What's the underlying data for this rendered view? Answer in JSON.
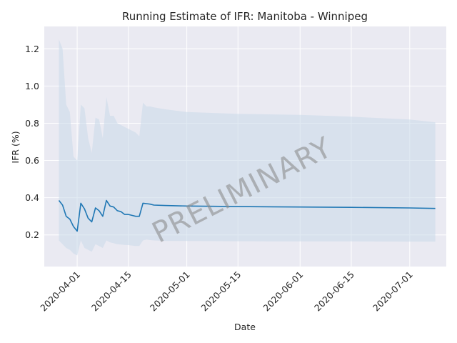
{
  "chart_data": {
    "type": "line",
    "title": "Running Estimate of IFR: Manitoba - Winnipeg",
    "xlabel": "Date",
    "ylabel": "IFR (%)",
    "watermark": "PRELIMINARY",
    "grid": true,
    "legend": "none",
    "xlim": [
      "2020-03-23",
      "2020-07-11"
    ],
    "ylim": [
      0.03,
      1.32
    ],
    "x_ticks": [
      "2020-04-01",
      "2020-04-15",
      "2020-05-01",
      "2020-05-15",
      "2020-06-01",
      "2020-06-15",
      "2020-07-01"
    ],
    "y_ticks": [
      "0.2",
      "0.4",
      "0.6",
      "0.8",
      "1.0",
      "1.2"
    ],
    "colors": {
      "line": "#1f77b4",
      "band": "#c9d9ea",
      "background": "#eaeaf2",
      "grid": "#ffffff"
    },
    "series": [
      {
        "x": [
          "2020-03-27",
          "2020-03-28",
          "2020-03-29",
          "2020-03-30",
          "2020-03-31",
          "2020-04-01",
          "2020-04-02",
          "2020-04-03",
          "2020-04-04",
          "2020-04-05",
          "2020-04-06",
          "2020-04-07",
          "2020-04-08",
          "2020-04-09",
          "2020-04-10",
          "2020-04-11",
          "2020-04-12",
          "2020-04-13",
          "2020-04-14",
          "2020-04-15",
          "2020-04-16",
          "2020-04-17",
          "2020-04-18",
          "2020-04-19",
          "2020-04-20",
          "2020-04-21",
          "2020-04-22",
          "2020-04-25",
          "2020-05-01",
          "2020-05-15",
          "2020-06-01",
          "2020-06-15",
          "2020-07-01",
          "2020-07-08"
        ],
        "values": [
          0.385,
          0.36,
          0.3,
          0.285,
          0.245,
          0.22,
          0.37,
          0.34,
          0.29,
          0.27,
          0.345,
          0.33,
          0.3,
          0.385,
          0.355,
          0.35,
          0.33,
          0.325,
          0.31,
          0.31,
          0.305,
          0.3,
          0.3,
          0.37,
          0.368,
          0.365,
          0.36,
          0.358,
          0.355,
          0.352,
          0.35,
          0.348,
          0.345,
          0.342
        ],
        "upper": [
          1.25,
          1.2,
          0.9,
          0.86,
          0.62,
          0.6,
          0.9,
          0.88,
          0.72,
          0.64,
          0.83,
          0.82,
          0.72,
          0.94,
          0.84,
          0.84,
          0.8,
          0.79,
          0.78,
          0.77,
          0.76,
          0.75,
          0.73,
          0.91,
          0.89,
          0.89,
          0.885,
          0.875,
          0.86,
          0.85,
          0.845,
          0.835,
          0.82,
          0.805
        ],
        "lower": [
          0.17,
          0.15,
          0.13,
          0.12,
          0.1,
          0.09,
          0.17,
          0.13,
          0.12,
          0.11,
          0.15,
          0.14,
          0.13,
          0.17,
          0.16,
          0.155,
          0.15,
          0.148,
          0.146,
          0.145,
          0.143,
          0.14,
          0.14,
          0.17,
          0.175,
          0.172,
          0.17,
          0.168,
          0.167,
          0.166,
          0.165,
          0.165,
          0.164,
          0.164
        ]
      }
    ]
  }
}
